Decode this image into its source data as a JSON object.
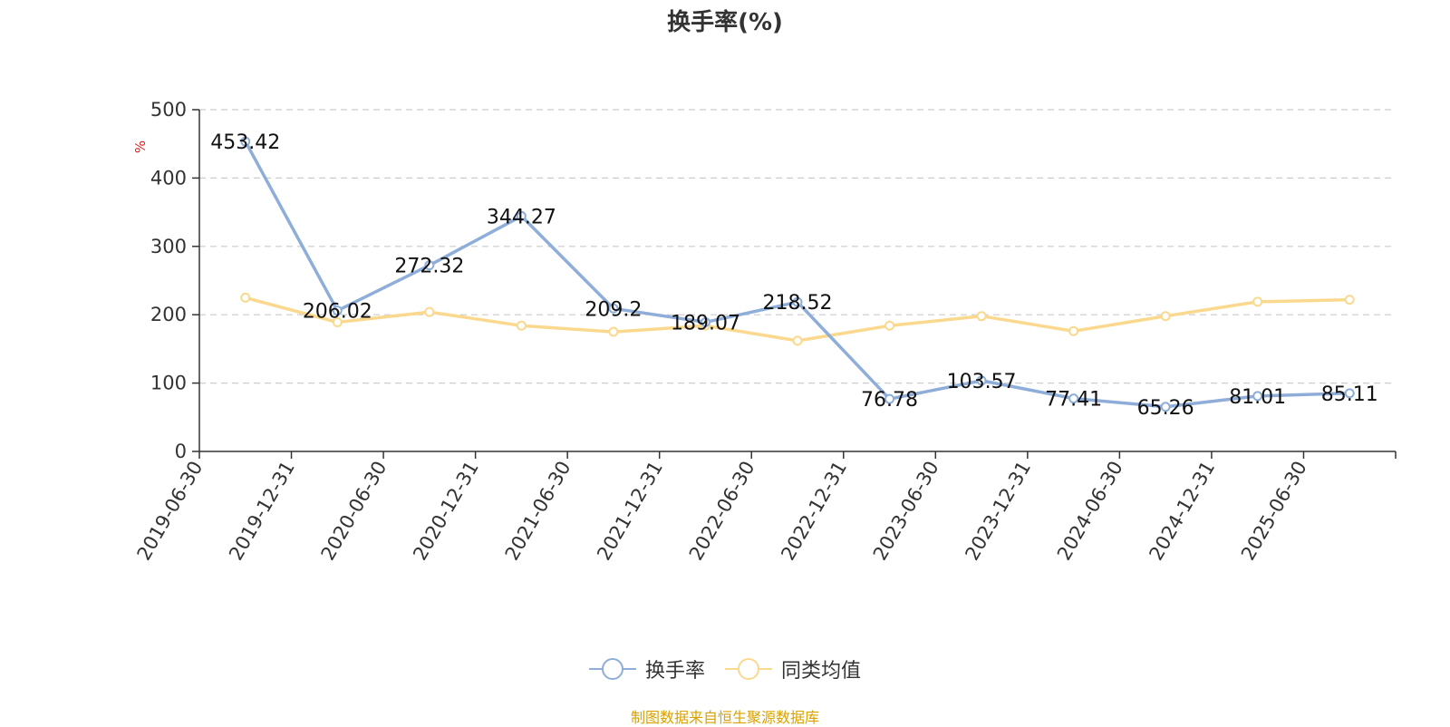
{
  "chart_data": {
    "type": "line",
    "title": "换手率(%)",
    "ylabel": "%",
    "xlabel": "",
    "ylim": [
      0,
      500
    ],
    "yticks": [
      0,
      100,
      200,
      300,
      400,
      500
    ],
    "grid": true,
    "legend_position": "bottom",
    "categories": [
      "2019-06-30",
      "2019-12-31",
      "2020-06-30",
      "2020-12-31",
      "2021-06-30",
      "2021-12-31",
      "2022-06-30",
      "2022-12-31",
      "2023-06-30",
      "2023-12-31",
      "2024-06-30",
      "2024-12-31",
      "2025-06-30"
    ],
    "series": [
      {
        "name": "换手率",
        "color": "#8eaed9",
        "show_labels": true,
        "values": [
          453.42,
          206.02,
          272.32,
          344.27,
          209.2,
          189.07,
          218.52,
          76.78,
          103.57,
          77.41,
          65.26,
          81.01,
          85.11
        ]
      },
      {
        "name": "同类均值",
        "color": "#fad98f",
        "show_labels": false,
        "values": [
          225,
          189,
          204,
          184,
          175,
          184,
          162,
          184,
          198,
          176,
          198,
          219,
          222
        ]
      }
    ]
  },
  "footer": {
    "source": "制图数据来自恒生聚源数据库"
  }
}
